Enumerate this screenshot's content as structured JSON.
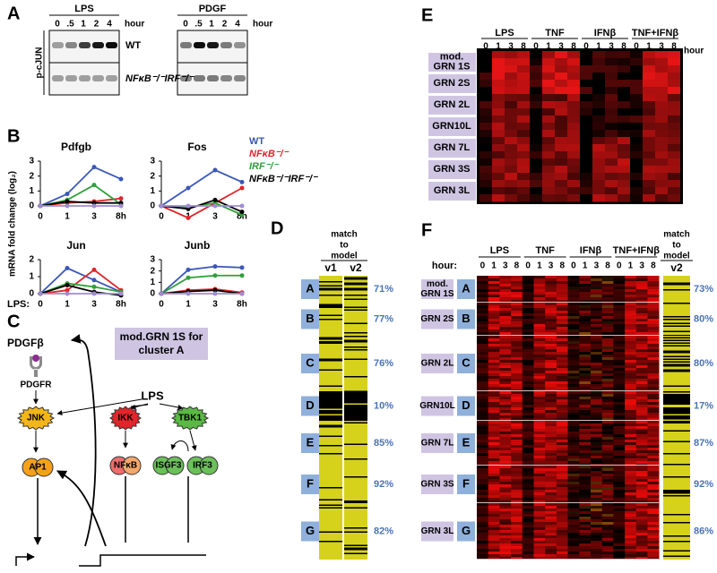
{
  "panel_a": {
    "label": "A",
    "conditions": [
      "LPS",
      "PDGF"
    ],
    "times": [
      "0",
      ".5",
      "1",
      "2",
      "4"
    ],
    "time_unit": "hour",
    "protein": "p-cJUN",
    "genotypes": [
      "WT",
      "NFκB⁻/⁻IRF⁻/⁻"
    ]
  },
  "panel_b": {
    "label": "B",
    "y_label": "mRNA fold change (log₂)",
    "x_prefix": "LPS:",
    "categories": [
      "0",
      "1",
      "3",
      "8h"
    ],
    "series": [
      {
        "name": "WT",
        "color": "#3b57b8"
      },
      {
        "name": "NFκB⁻/⁻",
        "color": "#e0252b"
      },
      {
        "name": "IRF⁻/⁻",
        "color": "#2ea03a"
      },
      {
        "name": "NFκB⁻/⁻IRF⁻/⁻",
        "color": "#000000"
      },
      {
        "color": "#a08cd0"
      }
    ],
    "charts": [
      {
        "title": "Pdfgb",
        "ylim": [
          0,
          3
        ],
        "yticks": [
          0,
          1,
          2,
          3
        ],
        "values": [
          [
            0,
            0.8,
            2.6,
            1.8
          ],
          [
            0,
            0.2,
            0.3,
            0.5
          ],
          [
            0,
            0.4,
            1.4,
            0.1
          ],
          [
            0,
            0.3,
            0.2,
            0.2
          ],
          [
            0,
            0,
            0,
            0
          ]
        ]
      },
      {
        "title": "Fos",
        "ylim": [
          0,
          3
        ],
        "yticks": [
          0,
          1,
          2,
          3
        ],
        "values": [
          [
            0,
            1.2,
            2.4,
            1.6
          ],
          [
            0,
            -0.8,
            0.2,
            1.2
          ],
          [
            0,
            -0.1,
            0.2,
            -0.6
          ],
          [
            0,
            -0.2,
            0.4,
            -0.4
          ],
          [
            0,
            0,
            0,
            0
          ]
        ]
      },
      {
        "title": "Jun",
        "ylim": [
          0,
          2
        ],
        "yticks": [
          0,
          1,
          2
        ],
        "values": [
          [
            0,
            1.5,
            0.8,
            0.1
          ],
          [
            0,
            0.2,
            1.4,
            0.2
          ],
          [
            0,
            0.6,
            0.4,
            0.1
          ],
          [
            0,
            0.5,
            0.1,
            -0.1
          ],
          [
            0,
            0,
            0,
            0
          ]
        ]
      },
      {
        "title": "Junb",
        "ylim": [
          0,
          3
        ],
        "yticks": [
          0,
          1,
          2,
          3
        ],
        "values": [
          [
            0,
            2.1,
            2.4,
            2.3
          ],
          [
            0,
            0.3,
            0.4,
            0.1
          ],
          [
            0,
            1.4,
            1.6,
            1.6
          ],
          [
            0,
            0.2,
            0.3,
            0
          ],
          [
            0,
            0,
            0,
            0
          ]
        ]
      }
    ]
  },
  "panel_c": {
    "label": "C",
    "box": [
      "mod.GRN 1S for",
      "cluster A"
    ],
    "nodes": {
      "pdgfb": "PDGFβ",
      "pdgfr": "PDGFR",
      "lps": "LPS",
      "jnk": "JNK",
      "ikk": "IKK",
      "tbk1": "TBK1",
      "ap1": "AP1",
      "nfkb": "NFκB",
      "isgf3": "ISGF3",
      "irf3": "IRF3"
    }
  },
  "panel_d": {
    "label": "D",
    "header": [
      "match",
      "to",
      "model"
    ],
    "columns": [
      "v1",
      "v2"
    ],
    "clusters": [
      "A",
      "B",
      "C",
      "D",
      "E",
      "F",
      "G"
    ],
    "match": [
      "71%",
      "77%",
      "76%",
      "10%",
      "85%",
      "92%",
      "82%"
    ]
  },
  "panel_e": {
    "label": "E",
    "stimuli": [
      "LPS",
      "TNF",
      "IFNβ",
      "TNF+IFNβ"
    ],
    "times": [
      "0",
      "1",
      "3",
      "8"
    ],
    "time_unit": "hour",
    "models": [
      [
        "mod.",
        "GRN 1S"
      ],
      [
        "GRN 2S"
      ],
      [
        "GRN 2L"
      ],
      [
        "GRN10L"
      ],
      [
        "GRN 7L"
      ],
      [
        "GRN 3S"
      ],
      [
        "GRN 3L"
      ]
    ]
  },
  "panel_f": {
    "label": "F",
    "time_prefix": "hour:",
    "stimuli": [
      "LPS",
      "TNF",
      "IFNβ",
      "TNF+IFNβ"
    ],
    "times": [
      "0",
      "1",
      "3",
      "8"
    ],
    "models": [
      [
        "mod.",
        "GRN 1S"
      ],
      [
        "GRN 2S"
      ],
      [
        "GRN 2L"
      ],
      [
        "GRN10L"
      ],
      [
        "GRN 7L"
      ],
      [
        "GRN 3S"
      ],
      [
        "GRN 3L"
      ]
    ],
    "clusters": [
      "A",
      "B",
      "C",
      "D",
      "E",
      "F",
      "G"
    ],
    "header": [
      "match",
      "to",
      "model"
    ],
    "column": "v2",
    "match": [
      "73%",
      "80%",
      "80%",
      "17%",
      "87%",
      "92%",
      "86%"
    ]
  }
}
